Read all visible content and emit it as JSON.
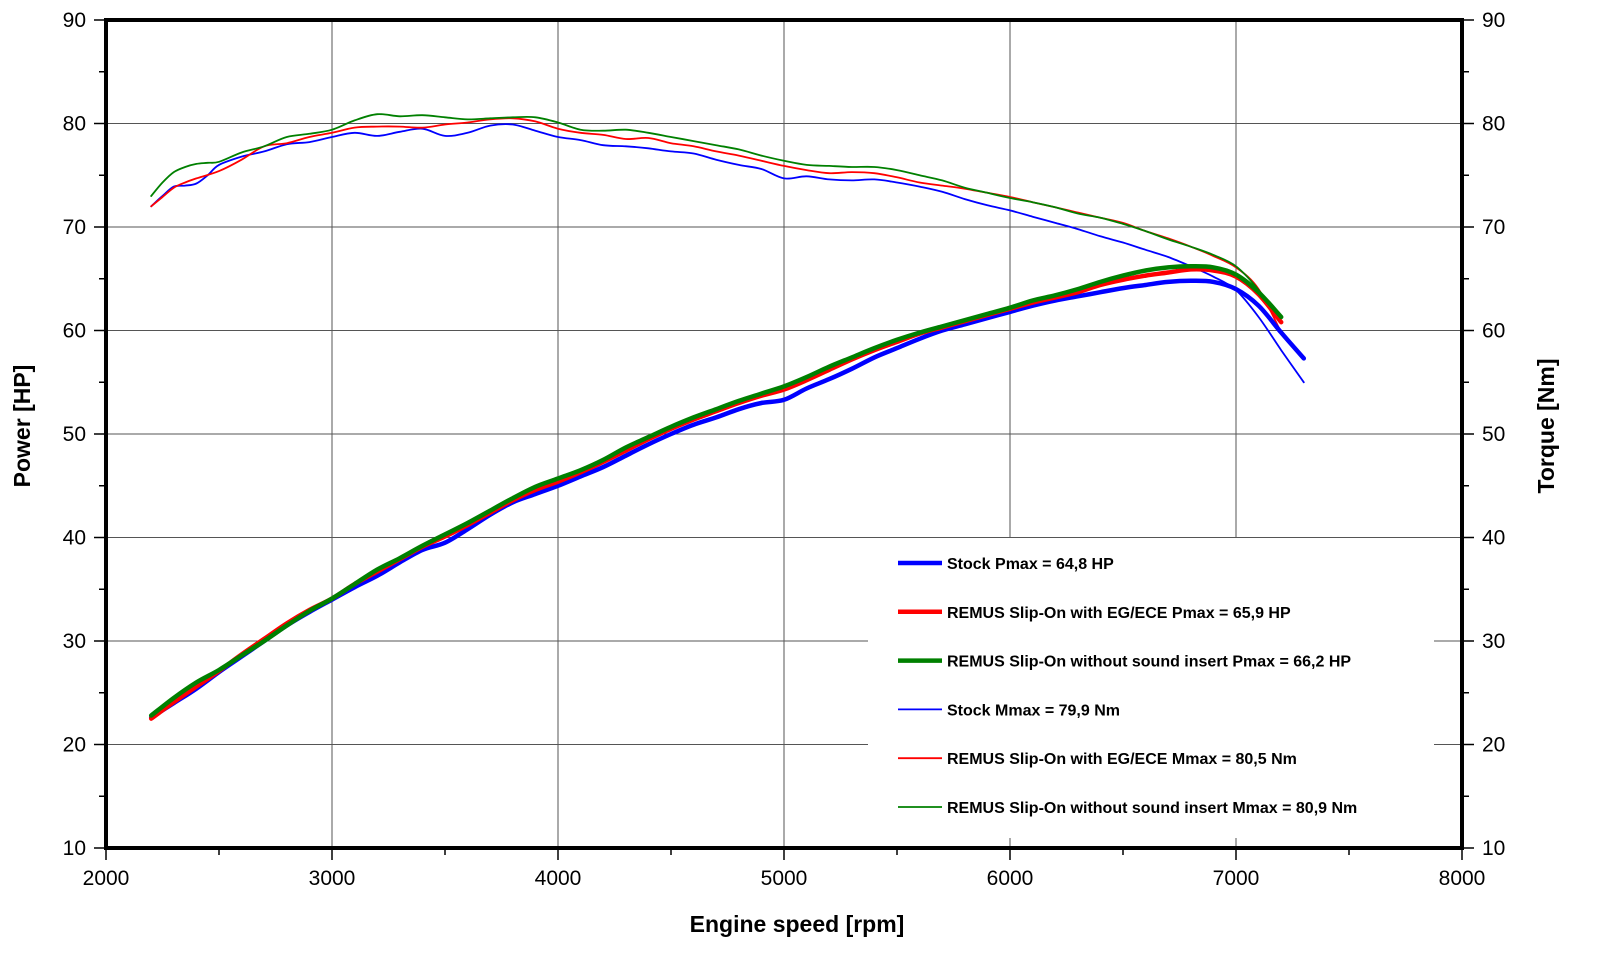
{
  "chart_data": {
    "type": "line",
    "xlabel": "Engine speed [rpm]",
    "ylabel": "Power [HP]",
    "y2label": "Torque [Nm]",
    "xlim": [
      2000,
      8000
    ],
    "ylim": [
      10,
      90
    ],
    "y2lim": [
      10,
      90
    ],
    "xticks": [
      2000,
      3000,
      4000,
      5000,
      6000,
      7000,
      8000
    ],
    "yticks": [
      10,
      20,
      30,
      40,
      50,
      60,
      70,
      80,
      90
    ],
    "grid": true,
    "legend_position": "bottom-right",
    "series": [
      {
        "name": "Stock Pmax = 64,8 HP",
        "color": "#0000ff",
        "weight": "thick",
        "axis": "left",
        "x": [
          2200,
          2300,
          2400,
          2500,
          2600,
          2700,
          2800,
          2900,
          3000,
          3100,
          3200,
          3300,
          3400,
          3500,
          3600,
          3700,
          3800,
          3900,
          4000,
          4100,
          4200,
          4300,
          4400,
          4500,
          4600,
          4700,
          4800,
          4900,
          5000,
          5100,
          5200,
          5300,
          5400,
          5500,
          5600,
          5700,
          5800,
          5900,
          6000,
          6100,
          6200,
          6300,
          6400,
          6500,
          6600,
          6700,
          6800,
          6900,
          7000,
          7100,
          7200,
          7300
        ],
        "y": [
          22.6,
          24,
          25.4,
          27,
          28.5,
          30,
          31.5,
          32.8,
          34,
          35.2,
          36.3,
          37.6,
          38.8,
          39.5,
          40.8,
          42.2,
          43.4,
          44.2,
          45,
          45.9,
          46.8,
          47.9,
          49,
          50,
          50.9,
          51.6,
          52.4,
          53,
          53.3,
          54.4,
          55.3,
          56.3,
          57.4,
          58.3,
          59.2,
          60,
          60.6,
          61.2,
          61.8,
          62.4,
          62.9,
          63.3,
          63.7,
          64.1,
          64.4,
          64.7,
          64.8,
          64.7,
          64,
          62.4,
          59.8,
          57.3
        ]
      },
      {
        "name": "REMUS Slip-On with EG/ECE Pmax = 65,9 HP",
        "color": "#ff0000",
        "weight": "thick",
        "axis": "left",
        "x": [
          2200,
          2300,
          2400,
          2500,
          2600,
          2700,
          2800,
          2900,
          3000,
          3100,
          3200,
          3300,
          3400,
          3500,
          3600,
          3700,
          3800,
          3900,
          4000,
          4100,
          4200,
          4300,
          4400,
          4500,
          4600,
          4700,
          4800,
          4900,
          5000,
          5100,
          5200,
          5300,
          5400,
          5500,
          5600,
          5700,
          5800,
          5900,
          6000,
          6100,
          6200,
          6300,
          6400,
          6500,
          6600,
          6700,
          6800,
          6900,
          7000,
          7100,
          7200
        ],
        "y": [
          22.5,
          24.1,
          25.6,
          27.1,
          28.7,
          30.2,
          31.7,
          33,
          34.1,
          35.5,
          36.7,
          37.9,
          39.1,
          40.1,
          41.2,
          42.4,
          43.6,
          44.6,
          45.4,
          46.3,
          47.3,
          48.4,
          49.5,
          50.5,
          51.4,
          52.2,
          53,
          53.7,
          54.3,
          55.2,
          56.2,
          57.2,
          58.1,
          58.9,
          59.7,
          60.3,
          60.9,
          61.5,
          62.1,
          62.7,
          63.2,
          63.7,
          64.4,
          64.9,
          65.3,
          65.6,
          65.9,
          65.8,
          65.2,
          63.5,
          60.8
        ]
      },
      {
        "name": "REMUS Slip-On without sound insert Pmax = 66,2 HP",
        "color": "#008000",
        "weight": "thick",
        "axis": "left",
        "x": [
          2200,
          2300,
          2400,
          2500,
          2600,
          2700,
          2800,
          2900,
          3000,
          3100,
          3200,
          3300,
          3400,
          3500,
          3600,
          3700,
          3800,
          3900,
          4000,
          4100,
          4200,
          4300,
          4400,
          4500,
          4600,
          4700,
          4800,
          4900,
          5000,
          5100,
          5200,
          5300,
          5400,
          5500,
          5600,
          5700,
          5800,
          5900,
          6000,
          6100,
          6200,
          6300,
          6400,
          6500,
          6600,
          6700,
          6800,
          6900,
          7000,
          7100,
          7200
        ],
        "y": [
          22.8,
          24.5,
          26,
          27.2,
          28.6,
          30,
          31.5,
          32.9,
          34.1,
          35.5,
          36.9,
          38,
          39.2,
          40.3,
          41.4,
          42.6,
          43.8,
          44.9,
          45.7,
          46.5,
          47.5,
          48.7,
          49.7,
          50.7,
          51.6,
          52.4,
          53.2,
          53.9,
          54.6,
          55.5,
          56.5,
          57.4,
          58.3,
          59.1,
          59.8,
          60.4,
          61,
          61.6,
          62.2,
          62.9,
          63.4,
          64,
          64.7,
          65.3,
          65.8,
          66.1,
          66.2,
          66.1,
          65.4,
          63.7,
          61.3
        ]
      },
      {
        "name": "Stock Mmax = 79,9 Nm",
        "color": "#0000ff",
        "weight": "thin",
        "axis": "right",
        "x": [
          2200,
          2250,
          2300,
          2350,
          2400,
          2450,
          2500,
          2600,
          2700,
          2800,
          2900,
          3000,
          3100,
          3200,
          3300,
          3400,
          3500,
          3600,
          3700,
          3800,
          3900,
          4000,
          4100,
          4200,
          4300,
          4400,
          4500,
          4600,
          4700,
          4800,
          4900,
          5000,
          5100,
          5200,
          5300,
          5400,
          5500,
          5600,
          5700,
          5800,
          5900,
          6000,
          6100,
          6200,
          6300,
          6400,
          6500,
          6600,
          6700,
          6800,
          6900,
          7000,
          7100,
          7200,
          7300
        ],
        "y": [
          72,
          73,
          73.9,
          74,
          74.2,
          75,
          76,
          76.8,
          77.3,
          78,
          78.2,
          78.7,
          79.1,
          78.8,
          79.2,
          79.5,
          78.8,
          79.1,
          79.8,
          79.9,
          79.3,
          78.7,
          78.4,
          77.9,
          77.8,
          77.6,
          77.3,
          77.1,
          76.5,
          76,
          75.6,
          74.7,
          74.9,
          74.6,
          74.5,
          74.6,
          74.3,
          73.9,
          73.4,
          72.7,
          72.1,
          71.6,
          71,
          70.4,
          69.8,
          69.1,
          68.5,
          67.8,
          67.1,
          66.2,
          65.2,
          63.9,
          61.3,
          58.1,
          55
        ]
      },
      {
        "name": "REMUS Slip-On with EG/ECE Mmax = 80,5 Nm",
        "color": "#ff0000",
        "weight": "thin",
        "axis": "right",
        "x": [
          2200,
          2250,
          2300,
          2350,
          2400,
          2500,
          2600,
          2700,
          2800,
          2900,
          3000,
          3100,
          3200,
          3300,
          3400,
          3500,
          3600,
          3700,
          3800,
          3900,
          4000,
          4100,
          4200,
          4300,
          4400,
          4500,
          4600,
          4700,
          4800,
          4900,
          5000,
          5100,
          5200,
          5300,
          5400,
          5500,
          5600,
          5700,
          5800,
          5900,
          6000,
          6100,
          6200,
          6300,
          6400,
          6500,
          6600,
          6700,
          6800,
          6900,
          7000,
          7100,
          7200
        ],
        "y": [
          72,
          72.9,
          73.8,
          74.3,
          74.7,
          75.4,
          76.5,
          77.8,
          78.1,
          78.7,
          79.1,
          79.6,
          79.7,
          79.7,
          79.6,
          79.9,
          80.1,
          80.4,
          80.5,
          80.2,
          79.5,
          79.1,
          78.9,
          78.5,
          78.6,
          78.1,
          77.8,
          77.3,
          76.9,
          76.4,
          75.9,
          75.5,
          75.2,
          75.3,
          75.2,
          74.8,
          74.3,
          74,
          73.7,
          73.3,
          72.9,
          72.4,
          71.9,
          71.4,
          70.9,
          70.4,
          69.6,
          68.9,
          68.1,
          67.2,
          66.1,
          64,
          59.8
        ]
      },
      {
        "name": "REMUS Slip-On without sound insert Mmax = 80,9 Nm",
        "color": "#008000",
        "weight": "thin",
        "axis": "right",
        "x": [
          2200,
          2250,
          2300,
          2350,
          2400,
          2450,
          2500,
          2600,
          2700,
          2800,
          2900,
          3000,
          3100,
          3200,
          3300,
          3400,
          3500,
          3600,
          3700,
          3800,
          3900,
          4000,
          4100,
          4200,
          4300,
          4400,
          4500,
          4600,
          4700,
          4800,
          4900,
          5000,
          5100,
          5200,
          5300,
          5400,
          5500,
          5600,
          5700,
          5800,
          5900,
          6000,
          6100,
          6200,
          6300,
          6400,
          6500,
          6600,
          6700,
          6800,
          6900,
          7000,
          7100,
          7200
        ],
        "y": [
          73,
          74.3,
          75.3,
          75.8,
          76.1,
          76.2,
          76.3,
          77.2,
          77.8,
          78.7,
          79,
          79.4,
          80.3,
          80.9,
          80.7,
          80.8,
          80.6,
          80.4,
          80.5,
          80.6,
          80.6,
          80.1,
          79.4,
          79.3,
          79.4,
          79.1,
          78.7,
          78.3,
          77.9,
          77.5,
          76.9,
          76.4,
          76,
          75.9,
          75.8,
          75.8,
          75.5,
          75,
          74.5,
          73.8,
          73.3,
          72.8,
          72.4,
          71.9,
          71.3,
          70.9,
          70.3,
          69.6,
          68.8,
          68.1,
          67.3,
          66.2,
          63.9,
          60.7
        ]
      }
    ]
  }
}
